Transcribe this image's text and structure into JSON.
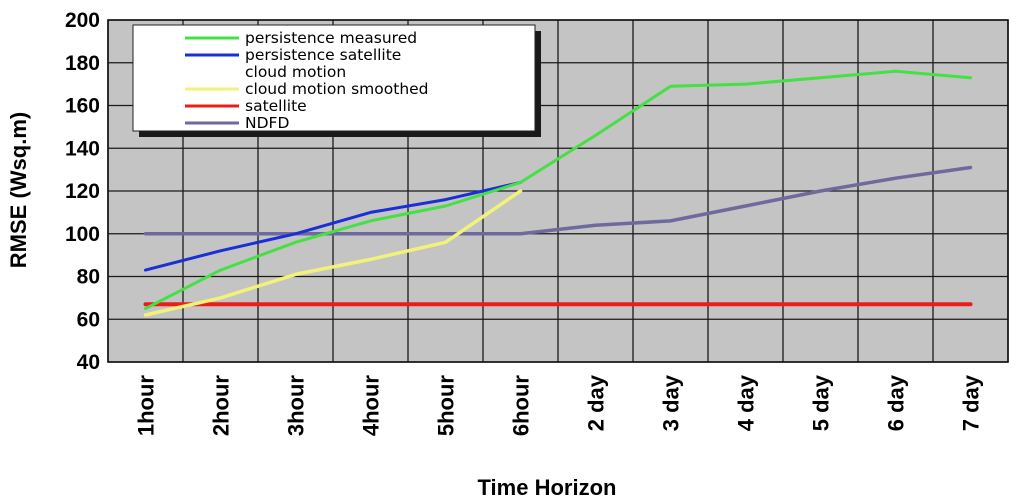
{
  "chart_data": {
    "type": "line",
    "categories": [
      "1hour",
      "2hour",
      "3hour",
      "4hour",
      "5hour",
      "6hour",
      "2 day",
      "3 day",
      "4 day",
      "5 day",
      "6 day",
      "7 day"
    ],
    "xlabel": "Time Horizon",
    "ylabel": "RMSE (Wsq.m)",
    "ylim": [
      40,
      200
    ],
    "yticks": [
      40,
      60,
      80,
      100,
      120,
      140,
      160,
      180,
      200
    ],
    "grid": true,
    "legend_position": "top-left",
    "series": [
      {
        "name": "persistence measured",
        "color": "#44e044",
        "values": [
          65,
          83,
          96,
          106,
          113,
          124,
          146,
          169,
          170,
          173,
          176,
          173
        ]
      },
      {
        "name": "persistence satellite cloud motion",
        "color": "#1a2fd6",
        "values": [
          83,
          92,
          100,
          110,
          116,
          124,
          null,
          null,
          null,
          null,
          null,
          null
        ]
      },
      {
        "name": "cloud motion smoothed",
        "color": "#f2f27a",
        "values": [
          62,
          70,
          81,
          88,
          96,
          120,
          null,
          null,
          null,
          null,
          null,
          null
        ]
      },
      {
        "name": "satellite",
        "color": "#ee1b1b",
        "values": [
          67,
          67,
          67,
          67,
          67,
          67,
          67,
          67,
          67,
          67,
          67,
          67
        ]
      },
      {
        "name": "NDFD",
        "color": "#6f6a9e",
        "values": [
          100,
          100,
          100,
          100,
          100,
          100,
          104,
          106,
          113,
          120,
          126,
          131
        ]
      }
    ],
    "legend_lines": [
      {
        "series": 0,
        "text": "persistence measured"
      },
      {
        "series": 1,
        "text": "persistence satellite"
      },
      {
        "series": -1,
        "text": "cloud motion"
      },
      {
        "series": 2,
        "text": "cloud motion smoothed"
      },
      {
        "series": 3,
        "text": "satellite"
      },
      {
        "series": 4,
        "text": "NDFD"
      }
    ]
  }
}
